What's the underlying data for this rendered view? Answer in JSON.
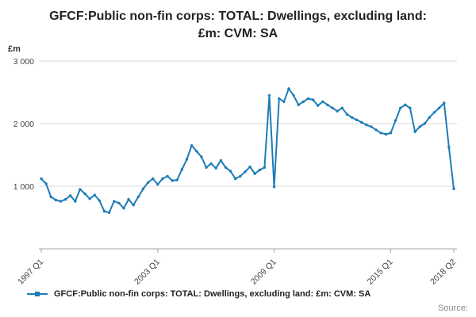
{
  "chart_data": {
    "type": "line",
    "title": "GFCF:Public non-fin corps: TOTAL: Dwellings, excluding land: £m: CVM: SA",
    "ylabel": "£m",
    "ylim": [
      0,
      3000
    ],
    "yticks": [
      1000,
      2000,
      3000
    ],
    "ytick_labels": [
      "1 000",
      "2 000",
      "3 000"
    ],
    "grid": true,
    "legend_position": "bottom",
    "frequency": "quarterly",
    "x_start": "1997 Q1",
    "x_end": "2018 Q2",
    "xticks": [
      {
        "index": 0,
        "label": "1997 Q1"
      },
      {
        "index": 24,
        "label": "2003 Q1"
      },
      {
        "index": 48,
        "label": "2009 Q1"
      },
      {
        "index": 72,
        "label": "2015 Q1"
      },
      {
        "index": 85,
        "label": "2018 Q2"
      }
    ],
    "series": [
      {
        "name": "GFCF:Public non-fin corps: TOTAL: Dwellings, excluding land: £m: CVM: SA",
        "color": "#1d7cb8",
        "values": [
          1120,
          1040,
          830,
          780,
          760,
          790,
          850,
          760,
          950,
          880,
          800,
          860,
          770,
          600,
          580,
          760,
          730,
          650,
          790,
          700,
          830,
          960,
          1060,
          1120,
          1030,
          1120,
          1160,
          1090,
          1100,
          1270,
          1430,
          1650,
          1560,
          1470,
          1300,
          1360,
          1290,
          1410,
          1300,
          1240,
          1120,
          1160,
          1230,
          1310,
          1200,
          1260,
          1300,
          2450,
          990,
          2400,
          2350,
          2560,
          2450,
          2300,
          2350,
          2400,
          2380,
          2290,
          2350,
          2300,
          2250,
          2200,
          2250,
          2150,
          2100,
          2060,
          2020,
          1980,
          1950,
          1900,
          1850,
          1830,
          1850,
          2050,
          2250,
          2300,
          2250,
          1870,
          1950,
          2000,
          2100,
          2180,
          2250,
          2330,
          1620,
          960
        ]
      }
    ]
  },
  "legend": {
    "label": "GFCF:Public non-fin corps: TOTAL: Dwellings, excluding land: £m: CVM: SA"
  },
  "footer": {
    "source_label": "Source:"
  }
}
